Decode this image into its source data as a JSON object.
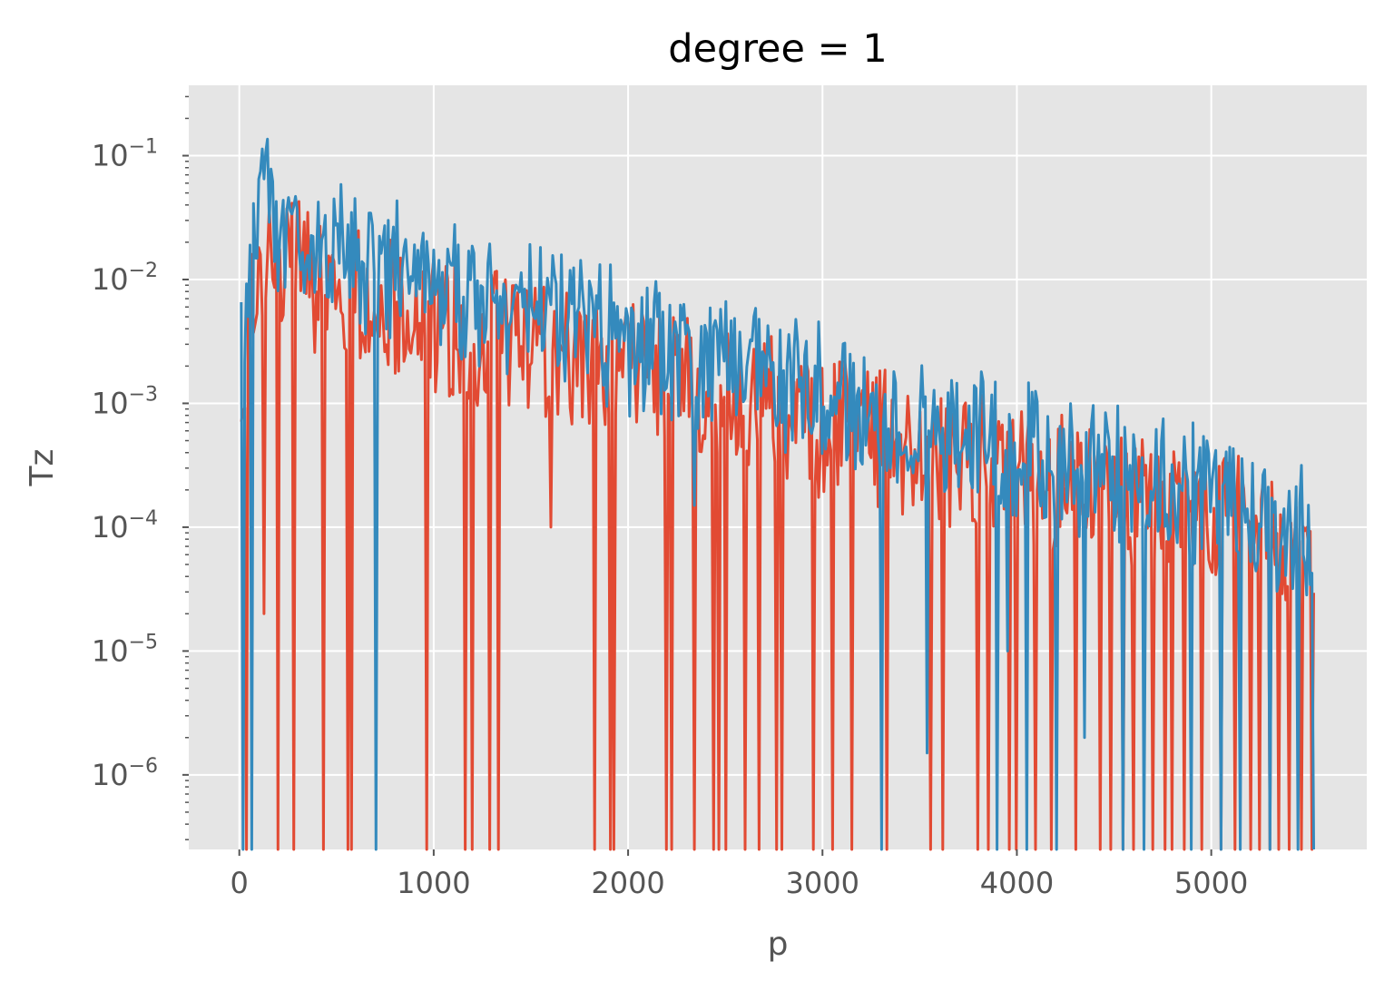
{
  "chart_data": {
    "type": "line",
    "title": "degree = 1",
    "xlabel": "p",
    "ylabel": "Tz",
    "xscale": "linear",
    "yscale": "log",
    "xlim": [
      -260,
      5800
    ],
    "ylim": [
      2.5e-07,
      0.37
    ],
    "x_ticks": [
      0,
      1000,
      2000,
      3000,
      4000,
      5000
    ],
    "y_ticks": [
      {
        "value": 1e-06,
        "base": "10",
        "exp": "−6"
      },
      {
        "value": 1e-05,
        "base": "10",
        "exp": "−5"
      },
      {
        "value": 0.0001,
        "base": "10",
        "exp": "−4"
      },
      {
        "value": 0.001,
        "base": "10",
        "exp": "−3"
      },
      {
        "value": 0.01,
        "base": "10",
        "exp": "−2"
      },
      {
        "value": 0.1,
        "base": "10",
        "exp": "−1"
      }
    ],
    "grid": true,
    "legend": "none",
    "colors": {
      "background": "#e5e5e5",
      "grid": "#ffffff",
      "series_red": "#e24a33",
      "series_blue": "#348abd"
    },
    "series": [
      {
        "color": "#e24a33",
        "x_start": 10,
        "x_end": 5530,
        "envelope_x": [
          10,
          100,
          200,
          500,
          1000,
          2000,
          3000,
          4000,
          5000,
          5530
        ],
        "envelope_y": [
          0.003,
          0.03,
          0.03,
          0.02,
          0.01,
          0.004,
          0.0015,
          0.0006,
          0.0003,
          0.00012
        ],
        "dips_x": [
          40,
          130,
          200,
          280,
          430,
          560,
          580,
          960,
          1160,
          1200,
          1290,
          1330,
          1600,
          1830,
          1910,
          1930,
          2200,
          2220,
          2340,
          2440,
          2470,
          2500,
          2600,
          2670,
          2760,
          2790,
          2950,
          3050,
          3150,
          3330,
          3560,
          3620,
          3800,
          3850,
          3960,
          4000,
          4100,
          4180,
          4300,
          4430,
          4480,
          4550,
          4600,
          4700,
          4760,
          4800,
          4860,
          4950,
          5050,
          5120,
          5200,
          5250,
          5300,
          5350,
          5400,
          5460,
          5520
        ],
        "dips_y": [
          2.5e-07,
          2e-05,
          2.5e-07,
          2.5e-07,
          2.5e-07,
          2.5e-07,
          2.5e-07,
          2.5e-07,
          2.5e-07,
          2.5e-07,
          2.5e-07,
          2.5e-07,
          0.0001,
          2.5e-07,
          2.5e-07,
          2.5e-07,
          2.5e-07,
          2.5e-07,
          2.5e-07,
          2.5e-07,
          2.5e-07,
          2.5e-07,
          2.5e-07,
          2.5e-07,
          2.5e-07,
          2.5e-07,
          2.5e-07,
          2.5e-07,
          2.5e-07,
          2.5e-07,
          2.5e-07,
          2.5e-07,
          2.5e-07,
          2.5e-07,
          2.5e-07,
          2.5e-07,
          2.5e-07,
          2.5e-07,
          2.5e-07,
          2.5e-07,
          2.5e-07,
          2.5e-07,
          2.5e-07,
          2.5e-07,
          2.5e-07,
          2.5e-07,
          2.5e-07,
          2.5e-07,
          2.5e-07,
          2.5e-07,
          2.5e-07,
          2.5e-07,
          2.5e-07,
          2.5e-07,
          2.5e-07,
          2.5e-07,
          2.5e-07
        ]
      },
      {
        "color": "#348abd",
        "x_start": 10,
        "x_end": 5530,
        "envelope_x": [
          10,
          100,
          200,
          500,
          1000,
          2000,
          3000,
          4000,
          5000,
          5530
        ],
        "envelope_y": [
          0.004,
          0.09,
          0.06,
          0.035,
          0.02,
          0.007,
          0.0025,
          0.0009,
          0.0004,
          0.00015
        ],
        "dips_x": [
          20,
          60,
          700,
          2340,
          3300,
          3540,
          3900,
          3950,
          4050,
          4200,
          4350,
          4550,
          4650,
          4900,
          5050,
          5150,
          5300,
          5450,
          5530
        ],
        "dips_y": [
          2.5e-07,
          2.5e-07,
          2.5e-07,
          0.00015,
          2.5e-07,
          1.5e-06,
          2.5e-07,
          1e-05,
          2.5e-07,
          2.5e-07,
          2e-06,
          2.5e-07,
          2.5e-07,
          2.5e-07,
          2.5e-07,
          2.5e-07,
          2.5e-07,
          2.5e-07,
          2.5e-07
        ]
      }
    ]
  }
}
